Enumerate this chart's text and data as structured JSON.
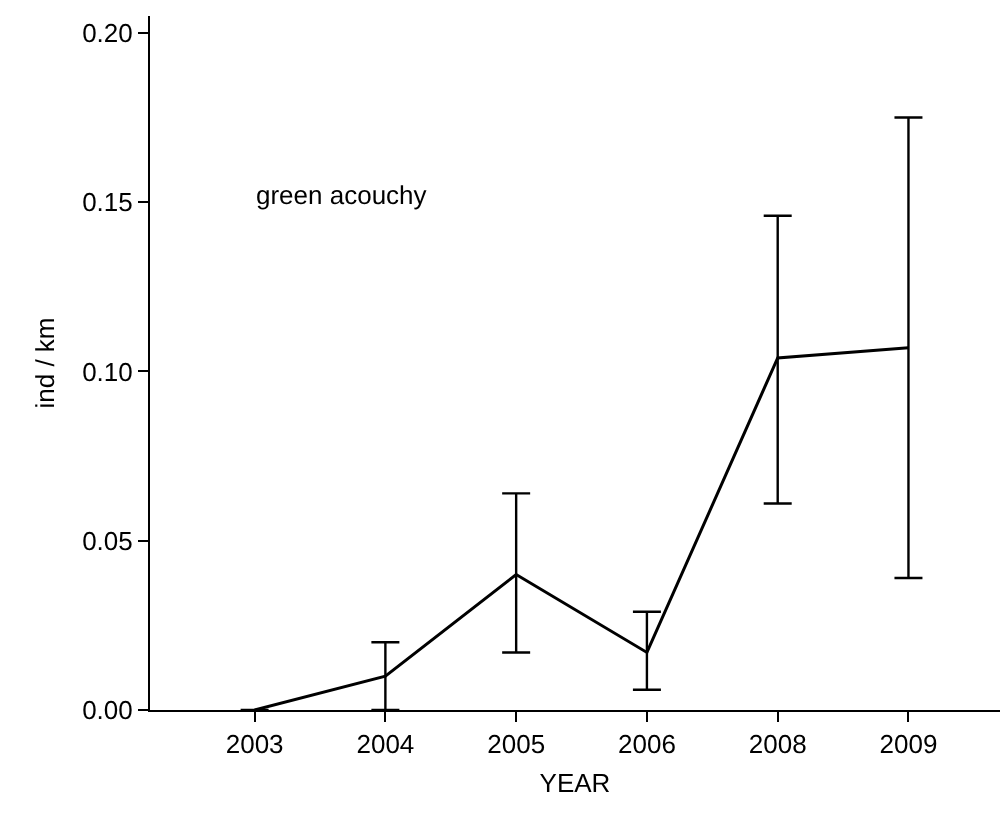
{
  "chart_data": {
    "type": "line",
    "xlabel": "YEAR",
    "ylabel": "ind / km",
    "annotations": [
      "green acouchy"
    ],
    "categories": [
      "2003",
      "2004",
      "2005",
      "2006",
      "2008",
      "2009"
    ],
    "values": [
      0,
      0.01,
      0.04,
      0.017,
      0.104,
      0.107
    ],
    "errors": [
      [
        0,
        0
      ],
      [
        0,
        0.02
      ],
      [
        0.017,
        0.064
      ],
      [
        0.006,
        0.029
      ],
      [
        0.061,
        0.146
      ],
      [
        0.039,
        0.175
      ]
    ],
    "color": "#000000",
    "marker": "none",
    "line_style": "solid",
    "ylim": [
      0,
      0.205
    ],
    "yticks": [
      {
        "value": 0,
        "label": "0.00"
      },
      {
        "value": 0.05,
        "label": "0.05"
      },
      {
        "value": 0.1,
        "label": "0.10"
      },
      {
        "value": 0.15,
        "label": "0.15"
      },
      {
        "value": 0.2,
        "label": "0.20"
      }
    ]
  }
}
